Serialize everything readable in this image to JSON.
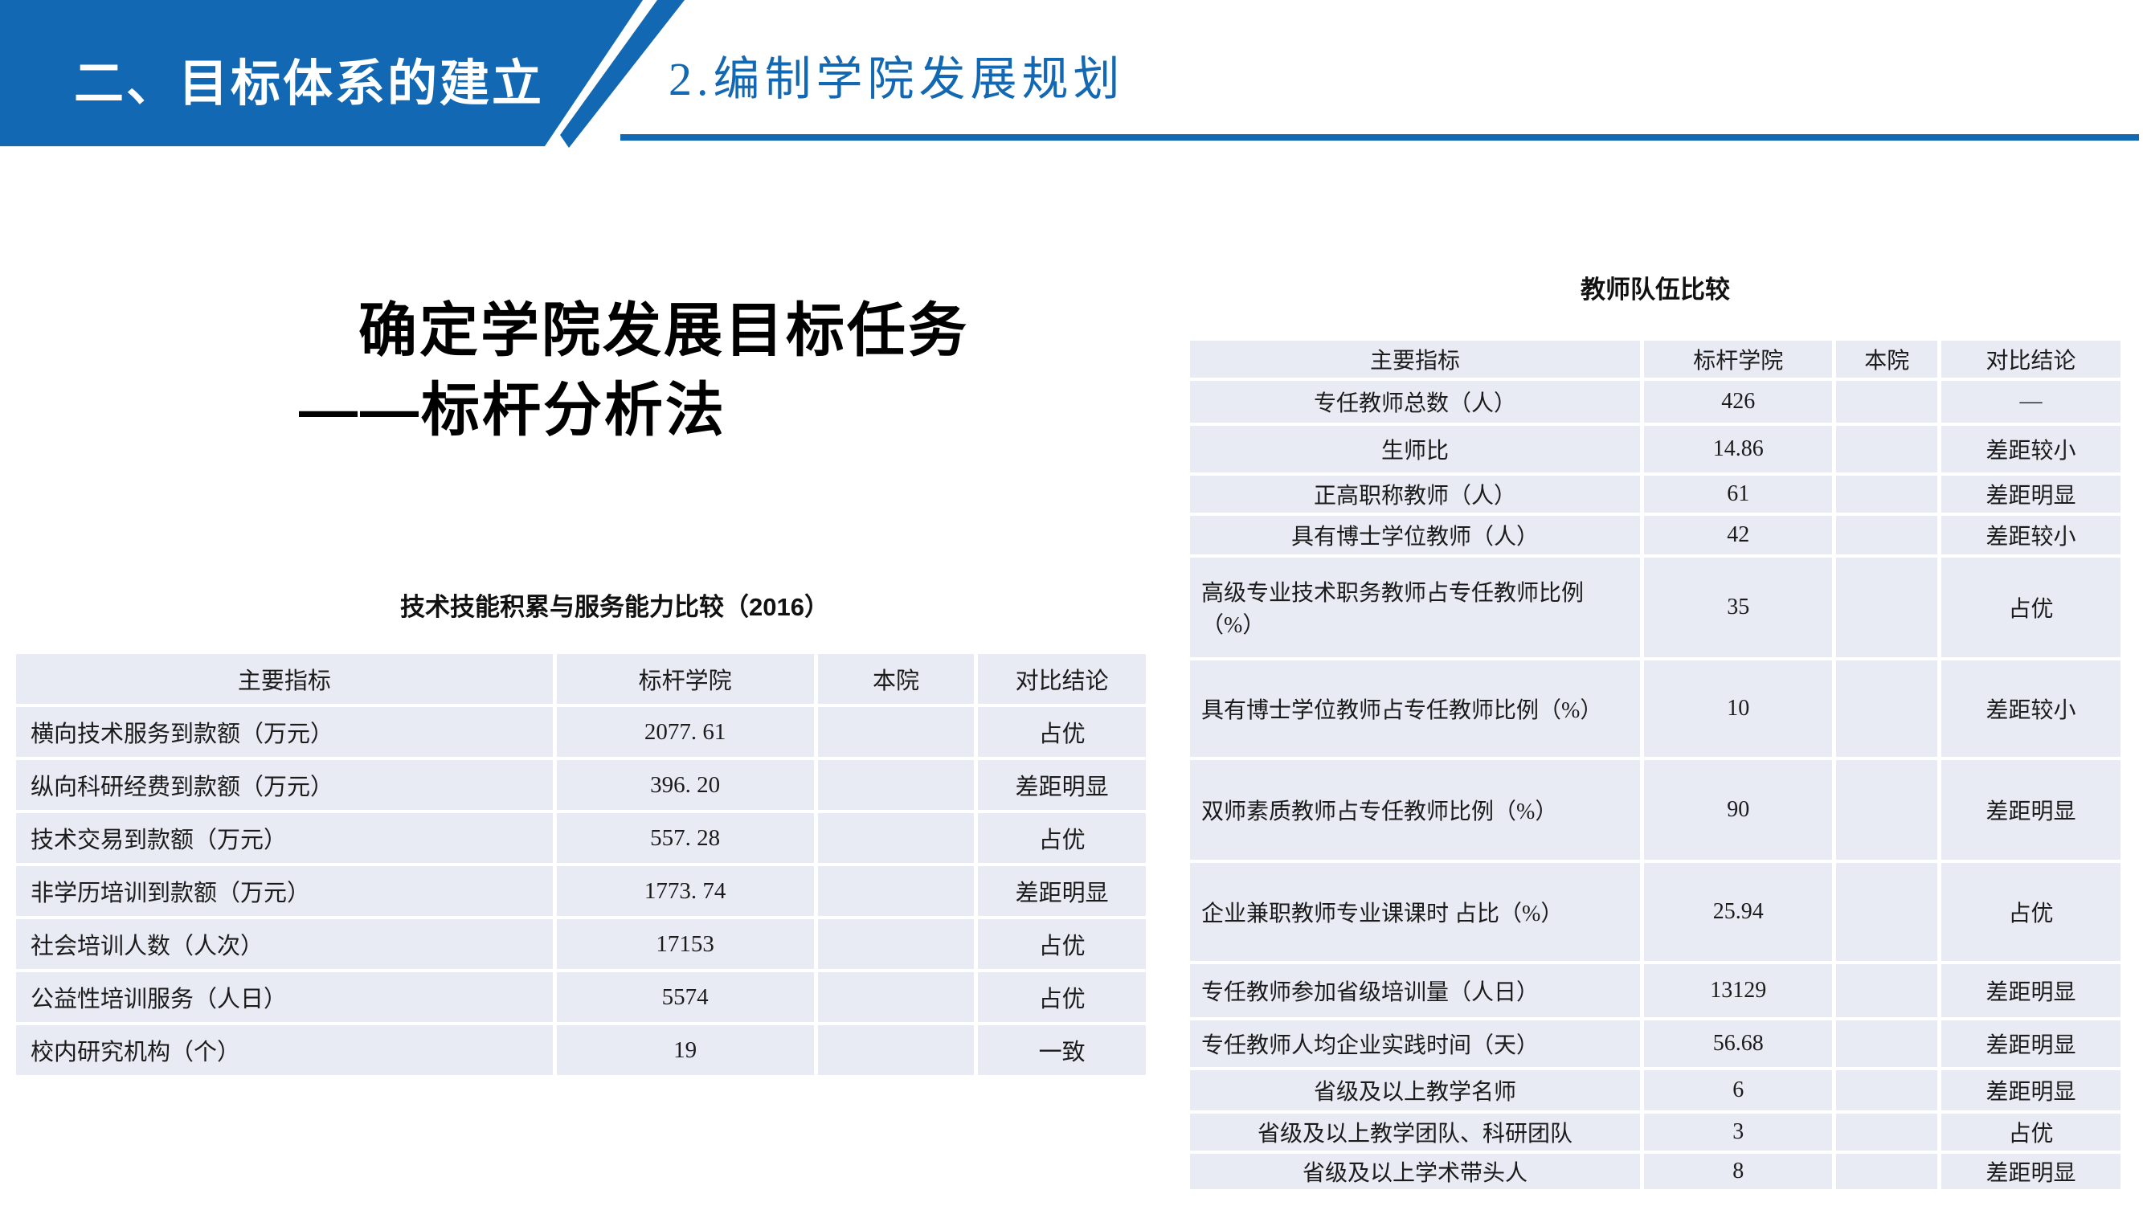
{
  "banner": {
    "title": "二、目标体系的建立"
  },
  "header": {
    "subtitle": "2.编制学院发展规划"
  },
  "main_title": {
    "line1": "确定学院发展目标任务",
    "line2": "——标杆分析法"
  },
  "colors": {
    "accent_blue": "#1268b2",
    "row_bg": "#e8ebf4",
    "banner_text": "#ffffff"
  },
  "left_table": {
    "title": "技术技能积累与服务能力比较（2016）",
    "headers": [
      "主要指标",
      "标杆学院",
      "本院",
      "对比结论"
    ],
    "rows": [
      {
        "indicator": "横向技术服务到款额（万元）",
        "benchmark": "2077. 61",
        "own": "",
        "conclusion": "占优"
      },
      {
        "indicator": "纵向科研经费到款额（万元）",
        "benchmark": "396. 20",
        "own": "",
        "conclusion": "差距明显"
      },
      {
        "indicator": "技术交易到款额（万元）",
        "benchmark": "557. 28",
        "own": "",
        "conclusion": "占优"
      },
      {
        "indicator": "非学历培训到款额（万元）",
        "benchmark": "1773. 74",
        "own": "",
        "conclusion": "差距明显"
      },
      {
        "indicator": "社会培训人数（人次）",
        "benchmark": "17153",
        "own": "",
        "conclusion": "占优"
      },
      {
        "indicator": "公益性培训服务（人日）",
        "benchmark": "5574",
        "own": "",
        "conclusion": "占优"
      },
      {
        "indicator": "校内研究机构（个）",
        "benchmark": "19",
        "own": "",
        "conclusion": "一致"
      }
    ]
  },
  "right_table": {
    "title": "教师队伍比较",
    "headers": [
      "主要指标",
      "标杆学院",
      "本院",
      "对比结论"
    ],
    "rows": [
      {
        "indicator": "专任教师总数（人）",
        "benchmark": "426",
        "own": "",
        "conclusion": "—"
      },
      {
        "indicator": "生师比",
        "benchmark": "14.86",
        "own": "",
        "conclusion": "差距较小"
      },
      {
        "indicator": "正高职称教师（人）",
        "benchmark": "61",
        "own": "",
        "conclusion": "差距明显"
      },
      {
        "indicator": "具有博士学位教师（人）",
        "benchmark": "42",
        "own": "",
        "conclusion": "差距较小"
      },
      {
        "indicator": "高级专业技术职务教师占专任教师比例（%）",
        "benchmark": "35",
        "own": "",
        "conclusion": "占优"
      },
      {
        "indicator": "具有博士学位教师占专任教师比例（%）",
        "benchmark": "10",
        "own": "",
        "conclusion": "差距较小"
      },
      {
        "indicator": "双师素质教师占专任教师比例（%）",
        "benchmark": "90",
        "own": "",
        "conclusion": "差距明显"
      },
      {
        "indicator": "企业兼职教师专业课课时 占比（%）",
        "benchmark": "25.94",
        "own": "",
        "conclusion": "占优"
      },
      {
        "indicator": "专任教师参加省级培训量（人日）",
        "benchmark": "13129",
        "own": "",
        "conclusion": "差距明显"
      },
      {
        "indicator": "专任教师人均企业实践时间（天）",
        "benchmark": "56.68",
        "own": "",
        "conclusion": "差距明显"
      },
      {
        "indicator": "省级及以上教学名师",
        "benchmark": "6",
        "own": "",
        "conclusion": "差距明显"
      },
      {
        "indicator": "省级及以上教学团队、科研团队",
        "benchmark": "3",
        "own": "",
        "conclusion": "占优"
      },
      {
        "indicator": "省级及以上学术带头人",
        "benchmark": "8",
        "own": "",
        "conclusion": "差距明显"
      }
    ]
  }
}
